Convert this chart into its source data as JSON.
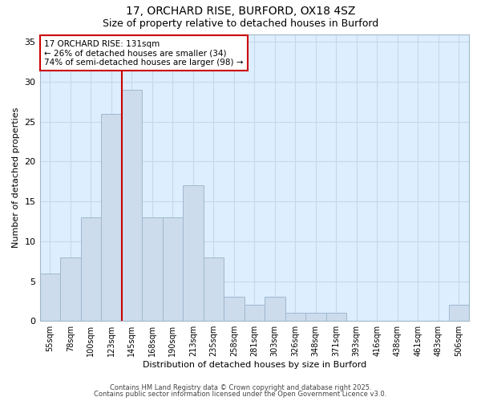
{
  "title1": "17, ORCHARD RISE, BURFORD, OX18 4SZ",
  "title2": "Size of property relative to detached houses in Burford",
  "xlabel": "Distribution of detached houses by size in Burford",
  "ylabel": "Number of detached properties",
  "categories": [
    "55sqm",
    "78sqm",
    "100sqm",
    "123sqm",
    "145sqm",
    "168sqm",
    "190sqm",
    "213sqm",
    "235sqm",
    "258sqm",
    "281sqm",
    "303sqm",
    "326sqm",
    "348sqm",
    "371sqm",
    "393sqm",
    "416sqm",
    "438sqm",
    "461sqm",
    "483sqm",
    "506sqm"
  ],
  "values": [
    6,
    8,
    13,
    26,
    29,
    13,
    13,
    17,
    8,
    3,
    2,
    3,
    1,
    1,
    1,
    0,
    0,
    0,
    0,
    0,
    2
  ],
  "bar_color": "#ccdcec",
  "bar_edge_color": "#a0b8d0",
  "bar_edge_width": 0.7,
  "vline_x": 3.5,
  "vline_color": "#cc0000",
  "annotation_text": "17 ORCHARD RISE: 131sqm\n← 26% of detached houses are smaller (34)\n74% of semi-detached houses are larger (98) →",
  "annotation_box_color": "#ffffff",
  "annotation_box_edge": "#cc0000",
  "plot_bg_color": "#ddeeff",
  "figure_bg_color": "#ffffff",
  "grid_color": "#c8d8e8",
  "ylim": [
    0,
    36
  ],
  "yticks": [
    0,
    5,
    10,
    15,
    20,
    25,
    30,
    35
  ],
  "footnote1": "Contains HM Land Registry data © Crown copyright and database right 2025.",
  "footnote2": "Contains public sector information licensed under the Open Government Licence v3.0."
}
